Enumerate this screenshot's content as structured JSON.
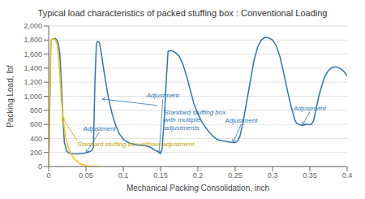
{
  "chart_data": {
    "type": "line",
    "title": "Typical load characteristics of packed stuffing box : Conventional Loading",
    "x_label": "Mechanical Packing Consolidation, inch",
    "y_label": "Packing Load, lbf",
    "xlim": [
      0,
      0.4
    ],
    "ylim": [
      0,
      2000
    ],
    "xticks": [
      0,
      0.05,
      0.1,
      0.15,
      0.2,
      0.25,
      0.3,
      0.35,
      0.4
    ],
    "yticks": [
      0,
      200,
      400,
      600,
      800,
      {
        "value": 1000,
        "label": "1,000"
      },
      {
        "value": 1200,
        "label": "1,200"
      },
      {
        "value": 1400,
        "label": "1,400"
      },
      {
        "value": 1600,
        "label": "1,600"
      },
      {
        "value": 1800,
        "label": "1,800"
      },
      {
        "value": 2000,
        "label": "2,000"
      }
    ],
    "grid": true,
    "series": [
      {
        "color": "#2e75b6",
        "x": [
          0.0,
          0.003,
          0.006,
          0.009,
          0.011,
          0.013,
          0.015,
          0.017,
          0.019,
          0.021,
          0.024,
          0.027,
          0.03,
          0.035,
          0.04,
          0.045,
          0.05,
          0.055,
          0.058,
          0.06,
          0.062,
          0.064,
          0.066,
          0.068,
          0.07,
          0.075,
          0.08,
          0.085,
          0.09,
          0.095,
          0.1,
          0.105,
          0.11,
          0.115,
          0.12,
          0.125,
          0.13,
          0.132,
          0.135,
          0.138,
          0.14,
          0.142,
          0.145,
          0.148,
          0.15,
          0.152,
          0.155,
          0.158,
          0.16,
          0.165,
          0.17,
          0.175,
          0.18,
          0.185,
          0.19,
          0.195,
          0.2,
          0.205,
          0.21,
          0.215,
          0.22,
          0.225,
          0.23,
          0.235,
          0.24,
          0.243,
          0.245,
          0.247,
          0.249,
          0.251,
          0.253,
          0.256,
          0.26,
          0.265,
          0.27,
          0.275,
          0.28,
          0.285,
          0.29,
          0.295,
          0.3,
          0.305,
          0.31,
          0.315,
          0.32,
          0.325,
          0.33,
          0.332,
          0.335,
          0.338,
          0.34,
          0.342,
          0.344,
          0.346,
          0.348,
          0.35,
          0.352,
          0.355,
          0.358,
          0.362,
          0.366,
          0.37,
          0.375,
          0.38,
          0.385,
          0.39,
          0.395,
          0.4
        ],
        "values": [
          0,
          1800,
          1820,
          1820,
          1800,
          1750,
          1600,
          1200,
          700,
          350,
          220,
          195,
          185,
          180,
          180,
          185,
          195,
          210,
          230,
          280,
          1200,
          1760,
          1780,
          1760,
          1650,
          1300,
          980,
          750,
          580,
          460,
          390,
          350,
          330,
          315,
          305,
          300,
          295,
          290,
          280,
          265,
          250,
          235,
          220,
          200,
          185,
          250,
          700,
          1300,
          1640,
          1650,
          1620,
          1570,
          1450,
          1280,
          1080,
          880,
          750,
          640,
          560,
          490,
          430,
          390,
          370,
          360,
          352,
          348,
          345,
          342,
          340,
          345,
          360,
          420,
          600,
          900,
          1200,
          1500,
          1700,
          1800,
          1840,
          1830,
          1800,
          1720,
          1560,
          1330,
          1080,
          850,
          660,
          620,
          600,
          590,
          588,
          590,
          595,
          600,
          598,
          595,
          600,
          650,
          800,
          1000,
          1150,
          1280,
          1370,
          1410,
          1420,
          1400,
          1360,
          1290
        ]
      },
      {
        "color": "#ffc000",
        "x": [
          0.0,
          0.003,
          0.006,
          0.009,
          0.011,
          0.013,
          0.015,
          0.017,
          0.02,
          0.023,
          0.027,
          0.031,
          0.036,
          0.042,
          0.05,
          0.06,
          0.07
        ],
        "values": [
          0,
          1800,
          1820,
          1800,
          1750,
          1600,
          1300,
          950,
          620,
          400,
          250,
          160,
          90,
          40,
          10,
          2,
          0
        ]
      }
    ],
    "annotations": [
      {
        "text": "Standard stuffing box without adjustment",
        "x": 0.018,
        "y": 700,
        "text_x": 0.038,
        "text_y": 370,
        "color": "#c8a000"
      },
      {
        "text": "Adjustment",
        "x": 0.05,
        "y": 195,
        "text_x": 0.068,
        "text_y": 490,
        "color": "#2e75b6"
      },
      {
        "x": 0.072,
        "y": 960,
        "text_x": 0.145,
        "text_y": 870,
        "color": "#2e75b6"
      },
      {
        "text": "Adjustment",
        "x": 0.148,
        "y": 185,
        "text_x": 0.153,
        "text_y": 960,
        "color": "#2e75b6"
      },
      {
        "text": "Standard stuffing box\nwith multiple\nadjustments",
        "text_x": 0.155,
        "text_y": 820,
        "color": "#2e75b6"
      },
      {
        "text": "Adjustment",
        "x": 0.247,
        "y": 342,
        "text_x": 0.258,
        "text_y": 600,
        "color": "#2e75b6"
      },
      {
        "text": "Adjustment",
        "x": 0.34,
        "y": 590,
        "text_x": 0.35,
        "text_y": 780,
        "color": "#2e75b6"
      }
    ]
  }
}
